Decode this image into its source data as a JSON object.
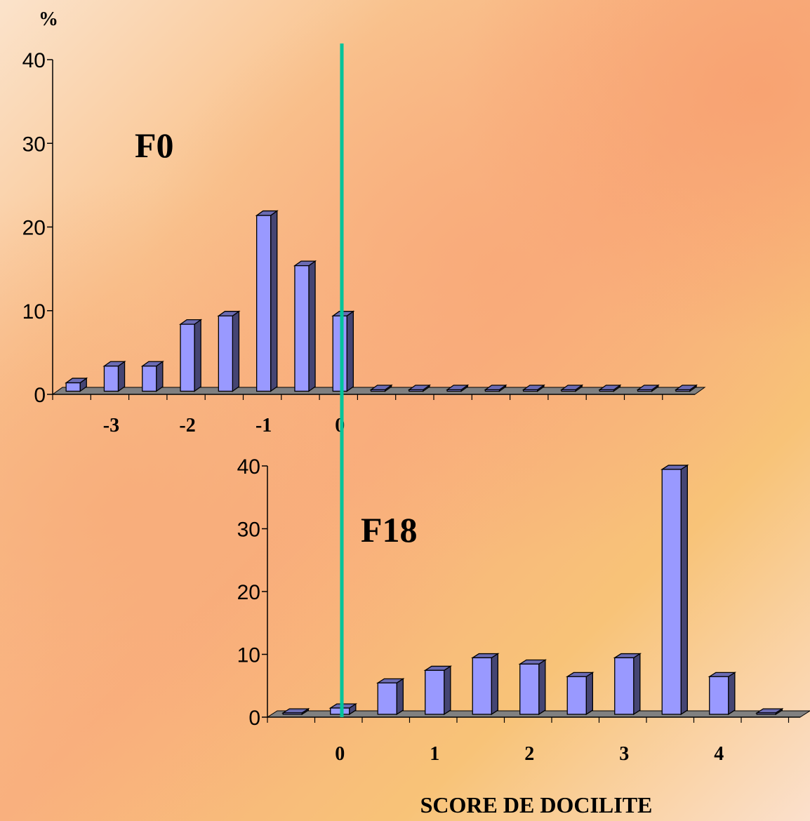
{
  "chart_data": [
    {
      "type": "bar",
      "panel_label": "F0",
      "unit_label": "%",
      "x_tick_labels": [
        "-3",
        "-2",
        "-1",
        "0"
      ],
      "categories": [
        "-3.5",
        "-3",
        "-2.5",
        "-2",
        "-1.5",
        "-1",
        "-0.5",
        "0",
        "0.5",
        "1",
        "1.5",
        "2",
        "2.5",
        "3",
        "3.5",
        "4",
        "4.5"
      ],
      "values": [
        1,
        3,
        3,
        8,
        9,
        21,
        15,
        9,
        0,
        0,
        0,
        0,
        0,
        0,
        0,
        0,
        0
      ],
      "ylim": [
        0,
        40
      ],
      "yticks": [
        "0",
        "10",
        "20",
        "30",
        "40"
      ],
      "bar_color": "#9999ff"
    },
    {
      "type": "bar",
      "panel_label": "F18",
      "x_tick_labels": [
        "0",
        "1",
        "2",
        "3",
        "4"
      ],
      "categories": [
        "-0.5",
        "0",
        "0.5",
        "1",
        "1.5",
        "2",
        "2.5",
        "3",
        "3.5",
        "4",
        "4.5"
      ],
      "values": [
        0,
        1,
        5,
        7,
        9,
        8,
        6,
        9,
        39,
        6,
        0
      ],
      "ylim": [
        0,
        40
      ],
      "yticks": [
        "0",
        "10",
        "20",
        "30",
        "40"
      ],
      "bar_color": "#9999ff"
    }
  ],
  "xlabel": "SCORE DE DOCILITE",
  "divider_color": "#00c49a"
}
